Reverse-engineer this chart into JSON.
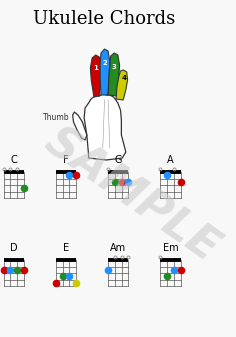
{
  "title": "Ukulele Chords",
  "background_color": "#f8f8f8",
  "chords": [
    {
      "name": "C",
      "col": 0,
      "row": 0,
      "open_strings": [
        0,
        1,
        2
      ],
      "dots": [
        {
          "string": 3,
          "fret": 3,
          "color": "#228b22"
        }
      ]
    },
    {
      "name": "F",
      "col": 1,
      "row": 0,
      "open_strings": [],
      "dots": [
        {
          "string": 2,
          "fret": 1,
          "color": "#1e90ff"
        },
        {
          "string": 3,
          "fret": 1,
          "color": "#cc0000"
        }
      ]
    },
    {
      "name": "G",
      "col": 2,
      "row": 0,
      "open_strings": [
        0
      ],
      "dots": [
        {
          "string": 1,
          "fret": 2,
          "color": "#228b22"
        },
        {
          "string": 2,
          "fret": 2,
          "color": "#cc0000"
        },
        {
          "string": 3,
          "fret": 2,
          "color": "#1e90ff"
        }
      ]
    },
    {
      "name": "A",
      "col": 3,
      "row": 0,
      "open_strings": [
        0,
        2
      ],
      "dots": [
        {
          "string": 1,
          "fret": 1,
          "color": "#1e90ff"
        },
        {
          "string": 3,
          "fret": 2,
          "color": "#cc0000"
        }
      ]
    },
    {
      "name": "D",
      "col": 0,
      "row": 1,
      "open_strings": [],
      "dots": [
        {
          "string": 0,
          "fret": 2,
          "color": "#cc0000"
        },
        {
          "string": 1,
          "fret": 2,
          "color": "#1e90ff"
        },
        {
          "string": 2,
          "fret": 2,
          "color": "#228b22"
        },
        {
          "string": 3,
          "fret": 2,
          "color": "#cc0000"
        }
      ]
    },
    {
      "name": "E",
      "col": 1,
      "row": 1,
      "open_strings": [],
      "dots": [
        {
          "string": 1,
          "fret": 3,
          "color": "#228b22"
        },
        {
          "string": 2,
          "fret": 3,
          "color": "#1e90ff"
        },
        {
          "string": 3,
          "fret": 4,
          "color": "#cccc00"
        },
        {
          "string": 0,
          "fret": 4,
          "color": "#cc0000"
        }
      ]
    },
    {
      "name": "Am",
      "col": 2,
      "row": 1,
      "open_strings": [
        1,
        2,
        3
      ],
      "dots": [
        {
          "string": 0,
          "fret": 2,
          "color": "#1e90ff"
        }
      ]
    },
    {
      "name": "Em",
      "col": 3,
      "row": 1,
      "open_strings": [
        0
      ],
      "dots": [
        {
          "string": 2,
          "fret": 2,
          "color": "#1e90ff"
        },
        {
          "string": 3,
          "fret": 2,
          "color": "#cc0000"
        },
        {
          "string": 1,
          "fret": 3,
          "color": "#228b22"
        }
      ]
    }
  ],
  "finger_colors": [
    "#cc0000",
    "#1e90ff",
    "#228b22",
    "#cccc00"
  ],
  "sample_text": "SAMPLE",
  "sample_color": "#c8c8c8",
  "thumb_label": "Thumb"
}
